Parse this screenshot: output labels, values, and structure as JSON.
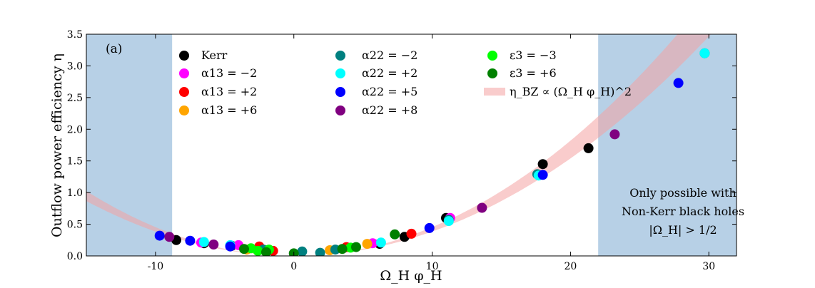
{
  "chart_data": {
    "type": "scatter",
    "panel_label": "(a)",
    "xlabel": "Ω_H φ_H",
    "ylabel": "Outflow power efficiency η",
    "xlim": [
      -15,
      32
    ],
    "ylim": [
      0,
      3.5
    ],
    "x_ticks": [
      -10,
      0,
      10,
      20,
      30
    ],
    "x_tick_labels": [
      "-10",
      "0",
      "10",
      "20",
      "30"
    ],
    "y_ticks": [
      0.0,
      0.5,
      1.0,
      1.5,
      2.0,
      2.5,
      3.0,
      3.5
    ],
    "y_tick_labels": [
      "0.0",
      "0.5",
      "1.0",
      "1.5",
      "2.0",
      "2.5",
      "3.0",
      "3.5"
    ],
    "shaded_regions": [
      {
        "name": "non-kerr-region-left",
        "x_range": [
          -15,
          -8.8
        ],
        "color": "#b7d0e6"
      },
      {
        "name": "non-kerr-region-right",
        "x_range": [
          22,
          32
        ],
        "color": "#b7d0e6"
      }
    ],
    "annotation_lines": [
      "Only possible with",
      "Non-Kerr black holes",
      "|Ω_H| > 1/2"
    ],
    "band": {
      "label": "η_BZ ∝ (Ω_H φ_H)^2",
      "color": "#f4a3a3",
      "opacity": 0.55,
      "lower_coef": 0.00385,
      "upper_coef": 0.00455
    },
    "series": [
      {
        "name": "Kerr",
        "color": "#000000",
        "points": [
          [
            -8.5,
            0.25
          ],
          [
            -6.5,
            0.2
          ],
          [
            -4.5,
            0.16
          ],
          [
            11,
            0.6
          ],
          [
            18,
            1.45
          ],
          [
            21.3,
            1.7
          ],
          [
            6.2,
            0.19
          ],
          [
            8,
            0.3
          ]
        ]
      },
      {
        "name": "α13 = −2",
        "color": "#ff00ff",
        "points": [
          [
            -6.7,
            0.21
          ],
          [
            -4,
            0.17
          ],
          [
            11.3,
            0.6
          ],
          [
            5.7,
            0.2
          ]
        ]
      },
      {
        "name": "α13 = +2",
        "color": "#ff0000",
        "points": [
          [
            -2.5,
            0.15
          ],
          [
            3.8,
            0.14
          ],
          [
            8.5,
            0.35
          ],
          [
            -1.5,
            0.08
          ]
        ]
      },
      {
        "name": "α13 = +6",
        "color": "#ffa500",
        "points": [
          [
            2.6,
            0.09
          ],
          [
            5.3,
            0.19
          ],
          [
            -3.4,
            0.1
          ]
        ]
      },
      {
        "name": "α22 = −2",
        "color": "#008080",
        "points": [
          [
            -2.2,
            0.1
          ],
          [
            0.6,
            0.07
          ],
          [
            1.9,
            0.05
          ],
          [
            3,
            0.1
          ],
          [
            11.2,
            0.57
          ],
          [
            17.6,
            1.29
          ],
          [
            29.7,
            3.2
          ]
        ]
      },
      {
        "name": "α22 = +2",
        "color": "#00ffff",
        "points": [
          [
            -6.5,
            0.22
          ],
          [
            -4.6,
            0.17
          ],
          [
            6.3,
            0.21
          ],
          [
            11.2,
            0.55
          ],
          [
            17.7,
            1.27
          ],
          [
            29.7,
            3.2
          ]
        ]
      },
      {
        "name": "α22 = +5",
        "color": "#0000ff",
        "points": [
          [
            -9.7,
            0.32
          ],
          [
            -7.5,
            0.24
          ],
          [
            -4.6,
            0.15
          ],
          [
            9.8,
            0.44
          ],
          [
            18,
            1.28
          ],
          [
            27.8,
            2.73
          ]
        ]
      },
      {
        "name": "α22 = +8",
        "color": "#800080",
        "points": [
          [
            -9,
            0.3
          ],
          [
            -5.8,
            0.18
          ],
          [
            13.6,
            0.76
          ],
          [
            23.2,
            1.92
          ]
        ]
      },
      {
        "name": "ε3 = −3",
        "color": "#00ff00",
        "points": [
          [
            -3.1,
            0.12
          ],
          [
            -2.6,
            0.08
          ],
          [
            4.1,
            0.13
          ],
          [
            -1.8,
            0.1
          ]
        ]
      },
      {
        "name": "ε3 = +6",
        "color": "#008000",
        "points": [
          [
            -3.6,
            0.11
          ],
          [
            -2,
            0.06
          ],
          [
            0,
            0.04
          ],
          [
            3.5,
            0.11
          ],
          [
            4.5,
            0.14
          ],
          [
            7.3,
            0.34
          ]
        ]
      }
    ]
  }
}
